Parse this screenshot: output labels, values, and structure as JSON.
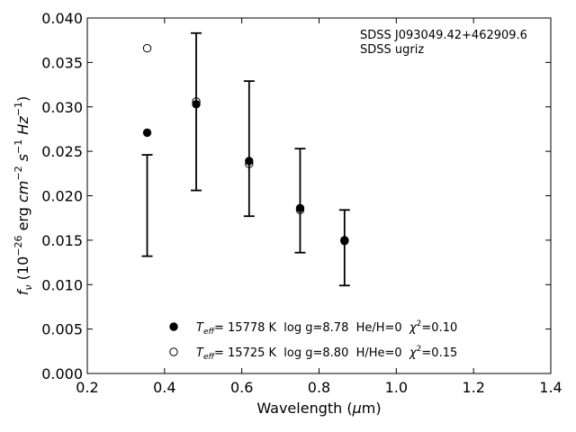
{
  "chart_data": {
    "type": "scatter",
    "title": "",
    "xlabel": {
      "prefix": "Wavelength (",
      "mu": "μ",
      "suffix": "m)"
    },
    "ylabel": {
      "f": "f",
      "nu": "ν",
      "paren_open": " (10",
      "exp26": "−26",
      "erg": " erg ",
      "cm": "cm",
      "exp_m2": "−2",
      "s": " s",
      "exp_m1a": "−1",
      "hz": " Hz",
      "exp_m1b": "−1",
      "paren_close": ")"
    },
    "xlim": [
      0.2,
      1.4
    ],
    "ylim": [
      0.0,
      0.04
    ],
    "xticks": [
      0.2,
      0.4,
      0.6,
      0.8,
      1.0,
      1.2,
      1.4
    ],
    "xtick_labels": [
      "0.2",
      "0.4",
      "0.6",
      "0.8",
      "1.0",
      "1.2",
      "1.4"
    ],
    "yticks": [
      0.0,
      0.005,
      0.01,
      0.015,
      0.02,
      0.025,
      0.03,
      0.035,
      0.04
    ],
    "ytick_labels": [
      "0.000",
      "0.005",
      "0.010",
      "0.015",
      "0.020",
      "0.025",
      "0.030",
      "0.035",
      "0.040"
    ],
    "grid": false,
    "legend_position": "bottom-center",
    "annotations": [
      "SDSS J093049.42+462909.6",
      "SDSS ugriz"
    ],
    "observed": {
      "x": [
        0.355,
        0.482,
        0.619,
        0.751,
        0.866
      ],
      "y_low": [
        0.0132,
        0.0206,
        0.0177,
        0.0136,
        0.0099
      ],
      "y_high": [
        0.0246,
        0.0383,
        0.0329,
        0.0253,
        0.0184
      ]
    },
    "series": [
      {
        "name": {
          "t": "T",
          "eff": "eff",
          "mid": "= 15778 K  log g=8.78  He/H=0  ",
          "chi": "χ",
          "two": "2",
          "end": "=0.10"
        },
        "marker": "filled-circle",
        "x": [
          0.355,
          0.482,
          0.619,
          0.751,
          0.866
        ],
        "y": [
          0.0271,
          0.0303,
          0.0239,
          0.0186,
          0.015
        ]
      },
      {
        "name": {
          "t": "T",
          "eff": "eff",
          "mid": "= 15725 K  log g=8.80  H/He=0  ",
          "chi": "χ",
          "two": "2",
          "end": "=0.15"
        },
        "marker": "open-circle",
        "x": [
          0.355,
          0.482,
          0.619,
          0.751,
          0.866
        ],
        "y": [
          0.0366,
          0.0306,
          0.0236,
          0.0184,
          0.0149
        ]
      }
    ],
    "colors": {
      "ink": "#000000",
      "background": "#ffffff"
    }
  }
}
